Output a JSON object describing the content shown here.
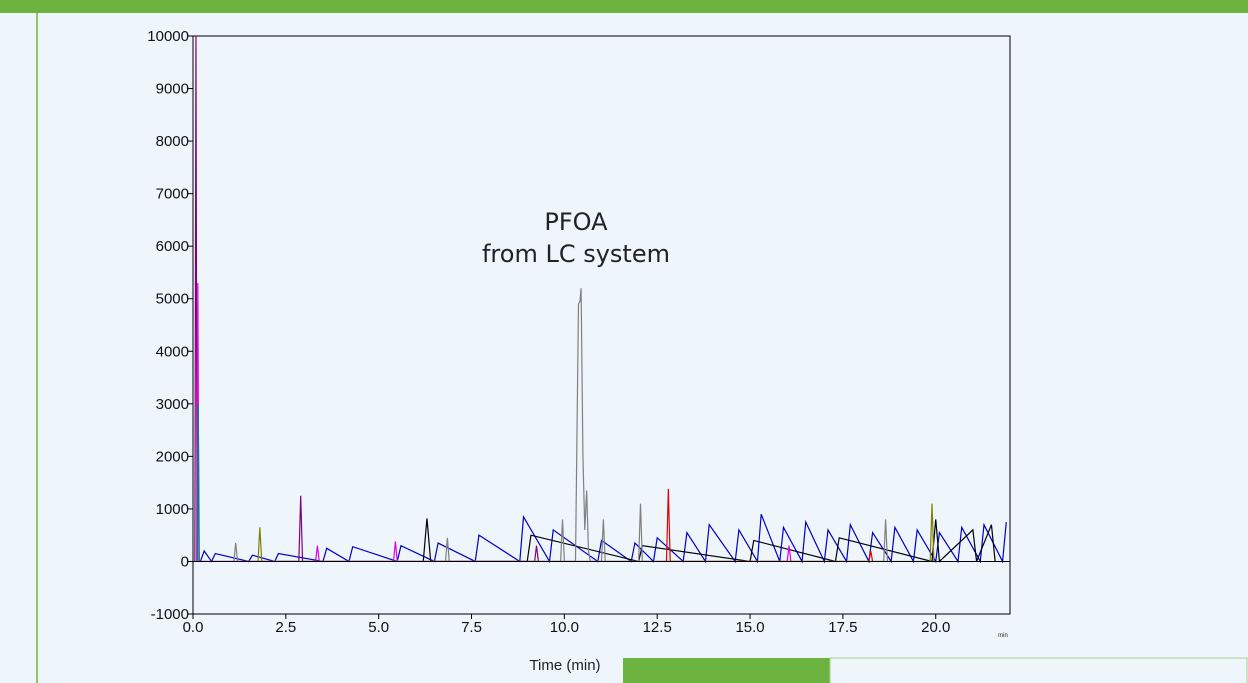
{
  "chart_data": {
    "type": "line",
    "annotation": [
      "PFOA",
      "from LC system"
    ],
    "x_label": "Time (min)",
    "x_unit": "min",
    "xlim": [
      0,
      22
    ],
    "ylim": [
      -1000,
      10000
    ],
    "xticks": [
      {
        "value": 0,
        "label": "0.0"
      },
      {
        "value": 2.5,
        "label": "2.5"
      },
      {
        "value": 5,
        "label": "5.0"
      },
      {
        "value": 7.5,
        "label": "7.5"
      },
      {
        "value": 10,
        "label": "10.0"
      },
      {
        "value": 12.5,
        "label": "12.5"
      },
      {
        "value": 15,
        "label": "15.0"
      },
      {
        "value": 17.5,
        "label": "17.5"
      },
      {
        "value": 20,
        "label": "20.0"
      }
    ],
    "yticks": [
      -1000,
      0,
      1000,
      2000,
      3000,
      4000,
      5000,
      6000,
      7000,
      8000,
      9000,
      10000
    ],
    "series": [
      {
        "color": "#0000c8",
        "x": [
          0.2,
          0.3,
          0.5,
          0.6,
          1.5,
          1.6,
          2.2,
          2.3,
          3.5,
          3.6,
          4.2,
          4.3,
          5.5,
          5.6,
          6.5,
          6.6,
          7.6,
          7.7,
          8.8,
          8.9,
          9.6,
          9.7,
          10.9,
          11.0,
          11.8,
          11.9,
          12.4,
          12.5,
          13.2,
          13.3,
          13.8,
          13.9,
          14.6,
          14.7,
          15.2,
          15.3,
          15.8,
          15.9,
          16.4,
          16.5,
          17.0,
          17.1,
          17.6,
          17.7,
          18.2,
          18.3,
          18.8,
          18.9,
          19.4,
          19.5,
          20.0,
          20.1,
          20.6,
          20.7,
          21.2,
          21.3,
          21.8,
          21.9
        ],
        "values": [
          0,
          200,
          0,
          150,
          0,
          120,
          0,
          150,
          0,
          250,
          0,
          280,
          0,
          300,
          0,
          350,
          0,
          500,
          0,
          850,
          0,
          600,
          0,
          400,
          0,
          350,
          0,
          450,
          0,
          550,
          0,
          700,
          0,
          600,
          0,
          900,
          0,
          650,
          0,
          750,
          0,
          600,
          0,
          700,
          0,
          550,
          0,
          650,
          0,
          600,
          0,
          550,
          0,
          650,
          0,
          700,
          0,
          750
        ]
      },
      {
        "color": "#000000",
        "x": [
          6.2,
          6.3,
          6.4,
          9.0,
          9.1,
          12.0,
          12.1,
          15.0,
          15.1,
          17.3,
          17.4,
          19.9,
          20.0,
          20.1,
          21.0,
          21.1,
          21.5,
          21.6
        ],
        "values": [
          0,
          820,
          0,
          0,
          500,
          0,
          300,
          0,
          400,
          0,
          450,
          0,
          800,
          0,
          600,
          0,
          700,
          0
        ]
      },
      {
        "color": "#808080",
        "x": [
          1.1,
          1.15,
          1.2,
          6.8,
          6.85,
          6.9,
          9.9,
          9.95,
          10.0,
          10.3,
          10.38,
          10.42,
          10.45,
          10.5,
          10.55,
          10.6,
          10.65,
          10.7,
          11.0,
          11.05,
          11.1,
          12.0,
          12.05,
          12.1,
          18.6,
          18.65,
          18.7
        ],
        "values": [
          0,
          350,
          0,
          0,
          450,
          0,
          0,
          800,
          0,
          0,
          4900,
          4950,
          5200,
          2000,
          600,
          1350,
          200,
          0,
          0,
          800,
          0,
          0,
          1100,
          0,
          0,
          800,
          0
        ]
      },
      {
        "color": "#800080",
        "x": [
          0.05,
          0.08,
          0.11,
          2.85,
          2.9,
          2.95,
          9.2,
          9.25,
          9.3
        ],
        "values": [
          0,
          10000,
          0,
          0,
          1250,
          0,
          0,
          300,
          0
        ]
      },
      {
        "color": "#e000e0",
        "x": [
          0.1,
          0.13,
          0.16,
          3.3,
          3.35,
          3.4,
          5.4,
          5.45,
          5.5,
          16.0,
          16.05,
          16.1
        ],
        "values": [
          0,
          5300,
          0,
          0,
          300,
          0,
          0,
          380,
          0,
          0,
          300,
          0
        ]
      },
      {
        "color": "#008080",
        "x": [
          0.12,
          0.14,
          0.17
        ],
        "values": [
          0,
          3000,
          0
        ]
      },
      {
        "color": "#e00000",
        "x": [
          12.75,
          12.8,
          12.85,
          18.2,
          18.25,
          18.3
        ],
        "values": [
          0,
          1380,
          0,
          0,
          200,
          0
        ]
      },
      {
        "color": "#808000",
        "x": [
          1.75,
          1.8,
          1.85,
          19.85,
          19.9,
          19.95
        ],
        "values": [
          0,
          650,
          0,
          0,
          1100,
          0
        ]
      }
    ]
  }
}
